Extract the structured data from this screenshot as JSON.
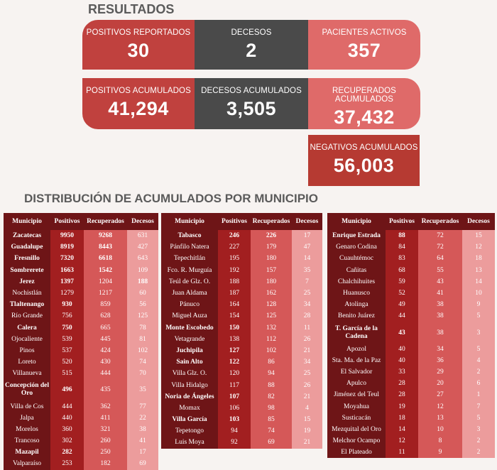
{
  "results_title": "RESULTADOS",
  "cards": {
    "positivos": {
      "label": "POSITIVOS REPORTADOS",
      "value": "30"
    },
    "decesos": {
      "label": "DECESOS",
      "value": "2"
    },
    "activos": {
      "label": "PACIENTES ACTIVOS",
      "value": "357"
    },
    "pos_acum": {
      "label": "POSITIVOS ACUMULADOS",
      "value": "41,294"
    },
    "dec_acum": {
      "label": "DECESOS ACUMULADOS",
      "value": "3,505"
    },
    "rec_acum": {
      "label": "RECUPERADOS ACUMULADOS",
      "value": "37,432"
    },
    "negativos": {
      "label": "NEGATIVOS ACUMULADOS",
      "value": "56,003"
    }
  },
  "distribution_title": "DISTRIBUCIÓN DE ACUMULADOS POR MUNICIPIO",
  "columns": [
    "Municipio",
    "Positivos",
    "Recuperados",
    "Decesos"
  ],
  "colors": {
    "header": "#6e1517",
    "positivos": "#a21f20",
    "recuperados": "#d55858",
    "decesos": "#ec9c9c"
  },
  "tables": [
    {
      "rows": [
        {
          "m": "Zacatecas",
          "p": "9950",
          "r": "9268",
          "d": "631",
          "bold": true,
          "rbold": true
        },
        {
          "m": "Guadalupe",
          "p": "8919",
          "r": "8443",
          "d": "427",
          "bold": true,
          "rbold": true
        },
        {
          "m": "Fresnillo",
          "p": "7320",
          "r": "6618",
          "d": "643",
          "bold": true,
          "rbold": true
        },
        {
          "m": "Sombrerete",
          "p": "1663",
          "r": "1542",
          "d": "109",
          "bold": true,
          "rbold": true
        },
        {
          "m": "Jerez",
          "p": "1397",
          "r": "1204",
          "d": "188",
          "bold": true,
          "dbold": true
        },
        {
          "m": "Nochistlán",
          "p": "1279",
          "r": "1217",
          "d": "60"
        },
        {
          "m": "Tlaltenango",
          "p": "930",
          "r": "859",
          "d": "56",
          "bold": true
        },
        {
          "m": "Río Grande",
          "p": "756",
          "r": "628",
          "d": "125"
        },
        {
          "m": "Calera",
          "p": "750",
          "r": "665",
          "d": "78",
          "bold": true
        },
        {
          "m": "Ojocaliente",
          "p": "539",
          "r": "445",
          "d": "81"
        },
        {
          "m": "Pinos",
          "p": "537",
          "r": "424",
          "d": "102"
        },
        {
          "m": "Loreto",
          "p": "520",
          "r": "430",
          "d": "74"
        },
        {
          "m": "Villanueva",
          "p": "515",
          "r": "444",
          "d": "70"
        },
        {
          "m": "Concepción del Oro",
          "p": "496",
          "r": "435",
          "d": "35",
          "bold": true,
          "tall": true
        },
        {
          "m": "Villa de Cos",
          "p": "444",
          "r": "362",
          "d": "77"
        },
        {
          "m": "Jalpa",
          "p": "440",
          "r": "411",
          "d": "22"
        },
        {
          "m": "Morelos",
          "p": "360",
          "r": "321",
          "d": "38"
        },
        {
          "m": "Trancoso",
          "p": "302",
          "r": "260",
          "d": "41"
        },
        {
          "m": "Mazapil",
          "p": "282",
          "r": "250",
          "d": "17",
          "bold": true
        },
        {
          "m": "Valparaíso",
          "p": "253",
          "r": "182",
          "d": "69"
        }
      ]
    },
    {
      "rows": [
        {
          "m": "Tabasco",
          "p": "246",
          "r": "226",
          "d": "17",
          "bold": true,
          "rbold": true
        },
        {
          "m": "Pánfilo Natera",
          "p": "227",
          "r": "179",
          "d": "47"
        },
        {
          "m": "Tepechitlán",
          "p": "195",
          "r": "180",
          "d": "14"
        },
        {
          "m": "Fco. R. Murguía",
          "p": "192",
          "r": "157",
          "d": "35"
        },
        {
          "m": "Teúl de Glz. O.",
          "p": "188",
          "r": "180",
          "d": "7"
        },
        {
          "m": "Juan Aldama",
          "p": "187",
          "r": "162",
          "d": "25"
        },
        {
          "m": "Pánuco",
          "p": "164",
          "r": "128",
          "d": "34"
        },
        {
          "m": "Miguel Auza",
          "p": "154",
          "r": "125",
          "d": "28"
        },
        {
          "m": "Monte Escobedo",
          "p": "150",
          "r": "132",
          "d": "11",
          "bold": true
        },
        {
          "m": "Vetagrande",
          "p": "138",
          "r": "112",
          "d": "26"
        },
        {
          "m": "Juchipila",
          "p": "127",
          "r": "102",
          "d": "21",
          "bold": true
        },
        {
          "m": "Sain Alto",
          "p": "122",
          "r": "86",
          "d": "34",
          "bold": true
        },
        {
          "m": "Villa Glz. O.",
          "p": "120",
          "r": "94",
          "d": "25"
        },
        {
          "m": "Villa Hidalgo",
          "p": "117",
          "r": "88",
          "d": "26"
        },
        {
          "m": "Noria de Ángeles",
          "p": "107",
          "r": "82",
          "d": "21",
          "bold": true
        },
        {
          "m": "Momax",
          "p": "106",
          "r": "98",
          "d": "4"
        },
        {
          "m": "Villa García",
          "p": "103",
          "r": "85",
          "d": "15",
          "bold": true
        },
        {
          "m": "Tepetongo",
          "p": "94",
          "r": "74",
          "d": "19"
        },
        {
          "m": "Luis Moya",
          "p": "92",
          "r": "69",
          "d": "21"
        }
      ]
    },
    {
      "rows": [
        {
          "m": "Enrique Estrada",
          "p": "88",
          "r": "72",
          "d": "15",
          "bold": true
        },
        {
          "m": "Genaro Codina",
          "p": "84",
          "r": "72",
          "d": "12"
        },
        {
          "m": "Cuauhtémoc",
          "p": "83",
          "r": "64",
          "d": "18"
        },
        {
          "m": "Cañitas",
          "p": "68",
          "r": "55",
          "d": "13"
        },
        {
          "m": "Chalchihuites",
          "p": "59",
          "r": "43",
          "d": "14"
        },
        {
          "m": "Huanusco",
          "p": "52",
          "r": "41",
          "d": "10"
        },
        {
          "m": "Atolinga",
          "p": "49",
          "r": "38",
          "d": "9"
        },
        {
          "m": "Benito Juárez",
          "p": "44",
          "r": "38",
          "d": "5"
        },
        {
          "m": "T. García de la Cadena",
          "p": "43",
          "r": "38",
          "d": "3",
          "bold": true,
          "tall": true
        },
        {
          "m": "Apozol",
          "p": "40",
          "r": "34",
          "d": "5"
        },
        {
          "m": "Sta. Ma. de la Paz",
          "p": "40",
          "r": "36",
          "d": "4"
        },
        {
          "m": "El Salvador",
          "p": "33",
          "r": "29",
          "d": "2"
        },
        {
          "m": "Apulco",
          "p": "28",
          "r": "20",
          "d": "6"
        },
        {
          "m": "Jiménez del Teul",
          "p": "28",
          "r": "27",
          "d": "1"
        },
        {
          "m": "Moyahua",
          "p": "19",
          "r": "12",
          "d": "7"
        },
        {
          "m": "Susticacán",
          "p": "18",
          "r": "13",
          "d": "5"
        },
        {
          "m": "Mezquital del Oro",
          "p": "14",
          "r": "10",
          "d": "3"
        },
        {
          "m": "Melchor Ocampo",
          "p": "12",
          "r": "8",
          "d": "2"
        },
        {
          "m": "El Plateado",
          "p": "11",
          "r": "9",
          "d": "2"
        }
      ]
    }
  ]
}
